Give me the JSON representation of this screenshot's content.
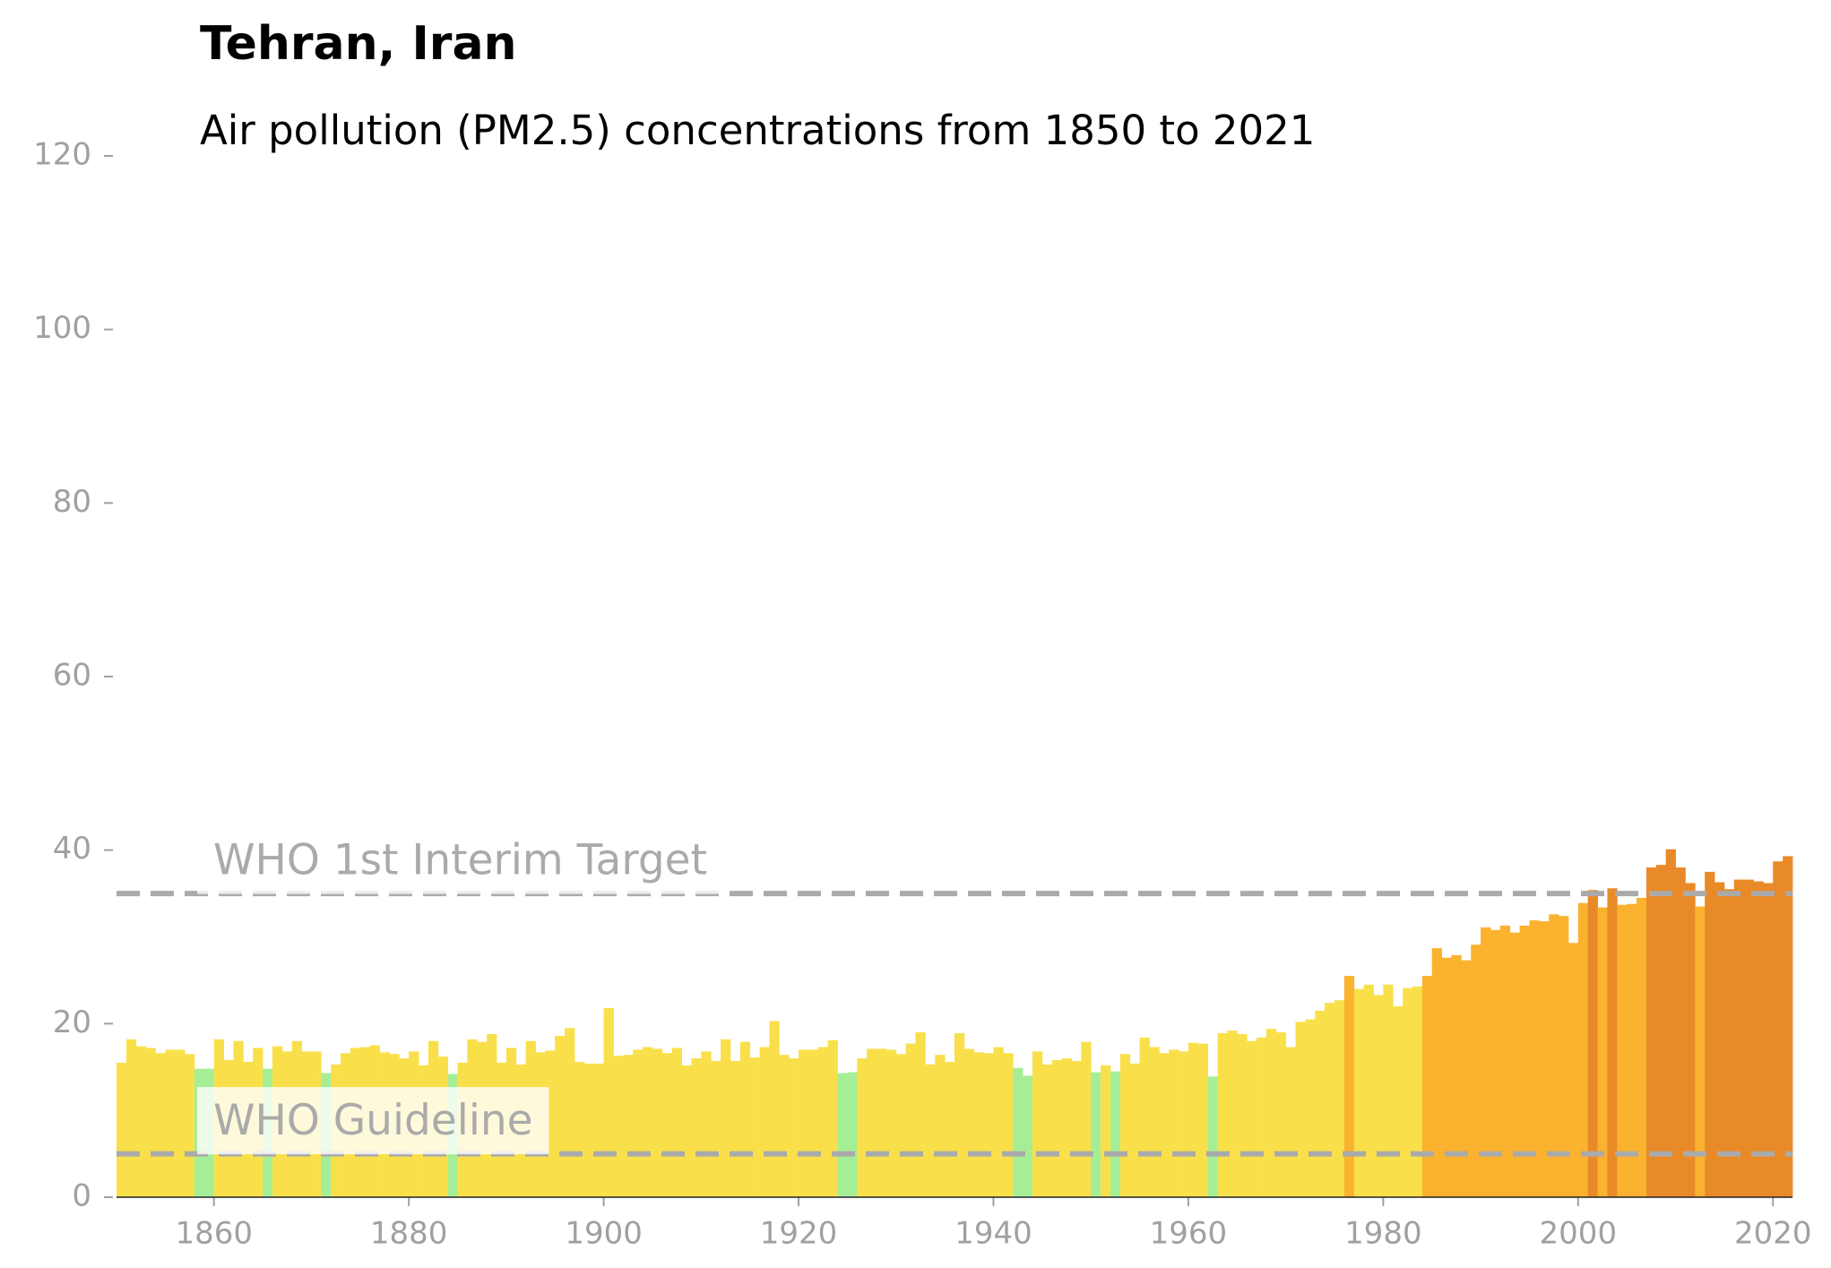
{
  "chart_data": {
    "type": "bar",
    "title": "Tehran, Iran",
    "subtitle": "Air pollution (PM2.5) concentrations from 1850 to 2021",
    "x": [
      1850,
      1851,
      1852,
      1853,
      1854,
      1855,
      1856,
      1857,
      1858,
      1859,
      1860,
      1861,
      1862,
      1863,
      1864,
      1865,
      1866,
      1867,
      1868,
      1869,
      1870,
      1871,
      1872,
      1873,
      1874,
      1875,
      1876,
      1877,
      1878,
      1879,
      1880,
      1881,
      1882,
      1883,
      1884,
      1885,
      1886,
      1887,
      1888,
      1889,
      1890,
      1891,
      1892,
      1893,
      1894,
      1895,
      1896,
      1897,
      1898,
      1899,
      1900,
      1901,
      1902,
      1903,
      1904,
      1905,
      1906,
      1907,
      1908,
      1909,
      1910,
      1911,
      1912,
      1913,
      1914,
      1915,
      1916,
      1917,
      1918,
      1919,
      1920,
      1921,
      1922,
      1923,
      1924,
      1925,
      1926,
      1927,
      1928,
      1929,
      1930,
      1931,
      1932,
      1933,
      1934,
      1935,
      1936,
      1937,
      1938,
      1939,
      1940,
      1941,
      1942,
      1943,
      1944,
      1945,
      1946,
      1947,
      1948,
      1949,
      1950,
      1951,
      1952,
      1953,
      1954,
      1955,
      1956,
      1957,
      1958,
      1959,
      1960,
      1961,
      1962,
      1963,
      1964,
      1965,
      1966,
      1967,
      1968,
      1969,
      1970,
      1971,
      1972,
      1973,
      1974,
      1975,
      1976,
      1977,
      1978,
      1979,
      1980,
      1981,
      1982,
      1983,
      1984,
      1985,
      1986,
      1987,
      1988,
      1989,
      1990,
      1991,
      1992,
      1993,
      1994,
      1995,
      1996,
      1997,
      1998,
      1999,
      2000,
      2001,
      2002,
      2003,
      2004,
      2005,
      2006,
      2007,
      2008,
      2009,
      2010,
      2011,
      2012,
      2013,
      2014,
      2015,
      2016,
      2017,
      2018,
      2019,
      2020,
      2021
    ],
    "values": [
      15.5,
      18.2,
      17.4,
      17.2,
      16.6,
      17.0,
      17.0,
      16.5,
      14.8,
      14.8,
      18.2,
      15.8,
      18.0,
      15.6,
      17.2,
      14.8,
      17.4,
      16.8,
      18.0,
      16.8,
      16.8,
      14.3,
      15.3,
      16.6,
      17.2,
      17.3,
      17.5,
      16.7,
      16.5,
      16.0,
      16.8,
      15.2,
      18.0,
      16.2,
      14.2,
      15.5,
      18.2,
      17.9,
      18.8,
      15.5,
      17.2,
      15.3,
      18.0,
      16.7,
      16.9,
      18.6,
      19.5,
      15.6,
      15.4,
      15.4,
      21.8,
      16.3,
      16.4,
      17.0,
      17.3,
      17.1,
      16.6,
      17.2,
      15.2,
      16.0,
      16.8,
      15.7,
      18.2,
      15.7,
      17.9,
      16.1,
      17.3,
      20.3,
      16.4,
      16.0,
      17.0,
      17.0,
      17.3,
      18.1,
      14.3,
      14.4,
      16.0,
      17.1,
      17.1,
      17.0,
      16.5,
      17.7,
      19.0,
      15.3,
      16.4,
      15.6,
      18.9,
      17.1,
      16.7,
      16.6,
      17.3,
      16.6,
      14.9,
      14.0,
      16.8,
      15.3,
      15.8,
      16.0,
      15.7,
      17.9,
      14.4,
      15.2,
      14.5,
      16.5,
      15.4,
      18.4,
      17.3,
      16.6,
      17.0,
      16.8,
      17.8,
      17.7,
      13.9,
      18.9,
      19.2,
      18.8,
      18.0,
      18.4,
      19.4,
      19.0,
      17.3,
      20.2,
      20.5,
      21.5,
      22.4,
      22.7,
      25.5,
      24.0,
      24.5,
      23.3,
      24.5,
      22.0,
      24.1,
      24.3,
      25.5,
      28.7,
      27.6,
      27.9,
      27.3,
      29.1,
      31.1,
      30.8,
      31.3,
      30.5,
      31.3,
      31.9,
      31.8,
      32.6,
      32.4,
      29.3,
      33.9,
      35.4,
      33.4,
      35.6,
      33.7,
      33.8,
      34.5,
      38.0,
      38.3,
      40.1,
      38.0,
      36.2,
      33.5,
      37.5,
      36.3,
      35.5,
      36.6,
      36.6,
      36.4,
      36.2,
      38.7,
      39.3
    ],
    "colors": [
      "#f9e04b",
      "#f9e04b",
      "#f9e04b",
      "#f9e04b",
      "#f9e04b",
      "#f9e04b",
      "#f9e04b",
      "#f9e04b",
      "#a6ee96",
      "#a6ee96",
      "#f9e04b",
      "#f9e04b",
      "#f9e04b",
      "#f9e04b",
      "#f9e04b",
      "#a6ee96",
      "#f9e04b",
      "#f9e04b",
      "#f9e04b",
      "#f9e04b",
      "#f9e04b",
      "#a6ee96",
      "#f9e04b",
      "#f9e04b",
      "#f9e04b",
      "#f9e04b",
      "#f9e04b",
      "#f9e04b",
      "#f9e04b",
      "#f9e04b",
      "#f9e04b",
      "#f9e04b",
      "#f9e04b",
      "#f9e04b",
      "#a6ee96",
      "#f9e04b",
      "#f9e04b",
      "#f9e04b",
      "#f9e04b",
      "#f9e04b",
      "#f9e04b",
      "#f9e04b",
      "#f9e04b",
      "#f9e04b",
      "#f9e04b",
      "#f9e04b",
      "#f9e04b",
      "#f9e04b",
      "#f9e04b",
      "#f9e04b",
      "#f9e04b",
      "#f9e04b",
      "#f9e04b",
      "#f9e04b",
      "#f9e04b",
      "#f9e04b",
      "#f9e04b",
      "#f9e04b",
      "#f9e04b",
      "#f9e04b",
      "#f9e04b",
      "#f9e04b",
      "#f9e04b",
      "#f9e04b",
      "#f9e04b",
      "#f9e04b",
      "#f9e04b",
      "#f9e04b",
      "#f9e04b",
      "#f9e04b",
      "#f9e04b",
      "#f9e04b",
      "#f9e04b",
      "#f9e04b",
      "#a6ee96",
      "#a6ee96",
      "#f9e04b",
      "#f9e04b",
      "#f9e04b",
      "#f9e04b",
      "#f9e04b",
      "#f9e04b",
      "#f9e04b",
      "#f9e04b",
      "#f9e04b",
      "#f9e04b",
      "#f9e04b",
      "#f9e04b",
      "#f9e04b",
      "#f9e04b",
      "#f9e04b",
      "#f9e04b",
      "#a6ee96",
      "#a6ee96",
      "#f9e04b",
      "#f9e04b",
      "#f9e04b",
      "#f9e04b",
      "#f9e04b",
      "#f9e04b",
      "#a6ee96",
      "#f9e04b",
      "#a6ee96",
      "#f9e04b",
      "#f9e04b",
      "#f9e04b",
      "#f9e04b",
      "#f9e04b",
      "#f9e04b",
      "#f9e04b",
      "#f9e04b",
      "#f9e04b",
      "#a6ee96",
      "#f9e04b",
      "#f9e04b",
      "#f9e04b",
      "#f9e04b",
      "#f9e04b",
      "#f9e04b",
      "#f9e04b",
      "#f9e04b",
      "#f9e04b",
      "#f9e04b",
      "#f9e04b",
      "#f9e04b",
      "#f9e04b",
      "#fbb22f",
      "#f9e04b",
      "#f9e04b",
      "#f9e04b",
      "#f9e04b",
      "#f9e04b",
      "#f9e04b",
      "#f9e04b",
      "#fbb22f",
      "#fbb22f",
      "#fbb22f",
      "#fbb22f",
      "#fbb22f",
      "#fbb22f",
      "#fbb22f",
      "#fbb22f",
      "#fbb22f",
      "#fbb22f",
      "#fbb22f",
      "#fbb22f",
      "#fbb22f",
      "#fbb22f",
      "#fbb22f",
      "#fbb22f",
      "#fbb22f",
      "#e98a28",
      "#fbb22f",
      "#e98a28",
      "#fbb22f",
      "#fbb22f",
      "#fbb22f",
      "#e98a28",
      "#e98a28",
      "#e98a28",
      "#e98a28",
      "#e98a28",
      "#fbb22f",
      "#e98a28",
      "#e98a28",
      "#e98a28",
      "#e98a28",
      "#e98a28",
      "#e98a28",
      "#e98a28",
      "#e98a28",
      "#e98a28"
    ],
    "xlim": [
      1850,
      2022
    ],
    "xticks": [
      1860,
      1880,
      1900,
      1920,
      1940,
      1960,
      1980,
      2000,
      2020
    ],
    "ylim": [
      0,
      120
    ],
    "yticks": [
      0,
      20,
      40,
      60,
      80,
      100,
      120
    ],
    "hlines": [
      {
        "value": 35,
        "label": "WHO 1st Interim Target"
      },
      {
        "value": 5,
        "label": "WHO Guideline"
      }
    ],
    "hline_color": "#aaaaaa"
  }
}
